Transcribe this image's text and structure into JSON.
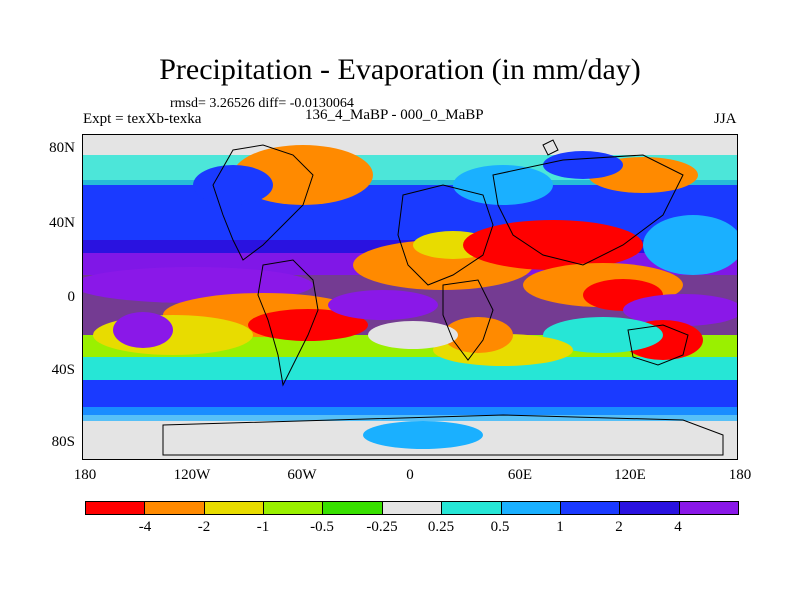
{
  "title": "Precipitation - Evaporation (in mm/day)",
  "stats": "rmsd= 3.26526  diff= -0.0130064",
  "experiment": "Expt = texXb-texka",
  "subtitle": "136_4_MaBP - 000_0_MaBP",
  "season": "JJA",
  "axes": {
    "lat_labels": [
      "80N",
      "40N",
      "0",
      "40S",
      "80S"
    ],
    "lon_labels": [
      "180",
      "120W",
      "60W",
      "0",
      "60E",
      "120E",
      "180"
    ]
  },
  "colors": {
    "bins": [
      "#ff0000",
      "#ff8a00",
      "#e8dc00",
      "#9af000",
      "#38e000",
      "#e4e4e4",
      "#26e6d6",
      "#1ab0ff",
      "#1a3aff",
      "#2a12e0",
      "#8a18e8"
    ],
    "land_outline": "#000000",
    "neutral": "#e4e4e4"
  },
  "colorbar": {
    "labels": [
      "-4",
      "-2",
      "-1",
      "-0.5",
      "-0.25",
      "0.25",
      "0.5",
      "1",
      "2",
      "4"
    ]
  }
}
